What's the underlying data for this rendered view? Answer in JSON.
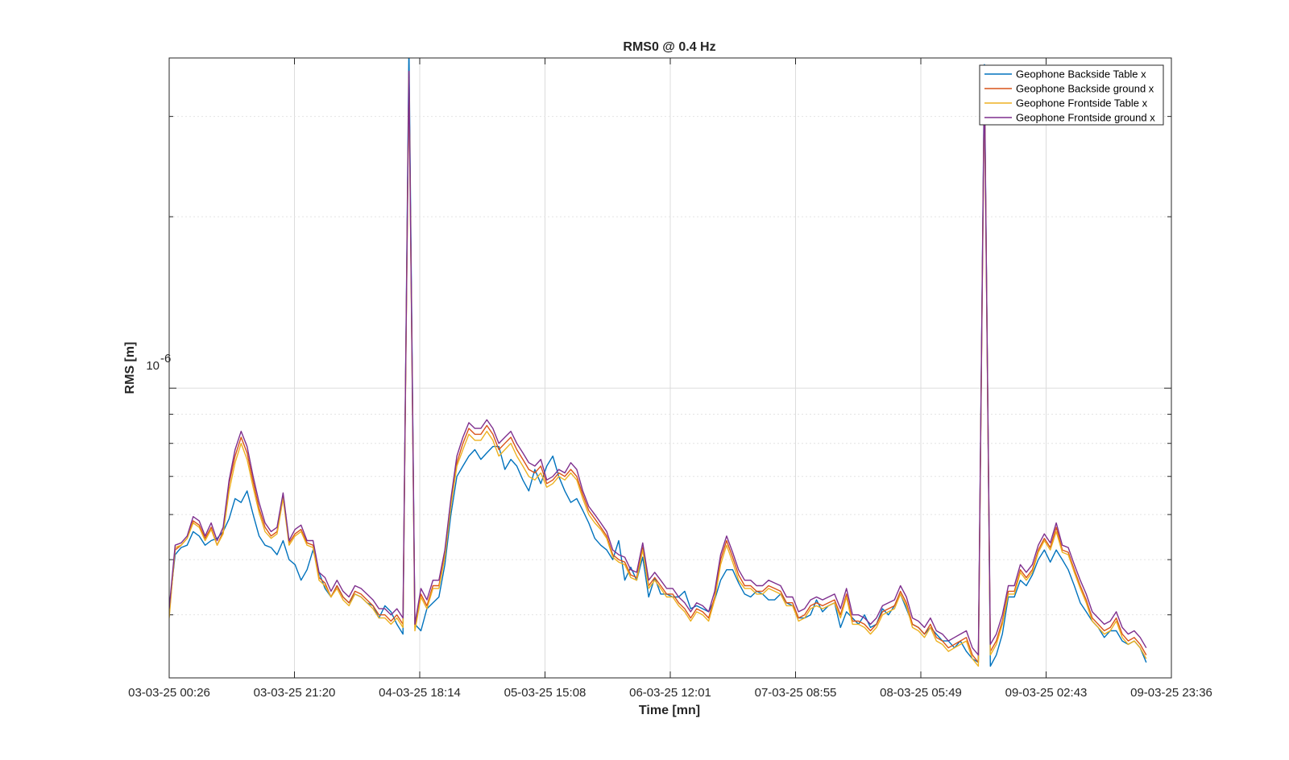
{
  "chart_data": {
    "type": "line",
    "title": "RMS0 @ 0.4 Hz",
    "xlabel": "Time [mn]",
    "ylabel": "RMS [m]",
    "y_scale": "log",
    "y_tick_label": {
      "base": "10",
      "exp": "-6"
    },
    "ylim": [
      3.1e-07,
      3.8e-06
    ],
    "x_ticks": [
      "03-03-25 00:26",
      "03-03-25 21:20",
      "04-03-25 18:14",
      "05-03-25 15:08",
      "06-03-25 12:01",
      "07-03-25 08:55",
      "08-03-25 05:49",
      "09-03-25 02:43",
      "09-03-25 23:36"
    ],
    "x_tick_hours": [
      0,
      20.9,
      41.8,
      62.7,
      83.6,
      104.5,
      125.4,
      146.3,
      167.2
    ],
    "xlim_hours": [
      0,
      167.2
    ],
    "grid": true,
    "legend_position": "top-right",
    "series": [
      {
        "name": "Geophone Backside Table x",
        "color": "#0072BD"
      },
      {
        "name": "Geophone Backside ground x",
        "color": "#D95319"
      },
      {
        "name": "Geophone Frontside Table x",
        "color": "#EDB120"
      },
      {
        "name": "Geophone Frontside ground x",
        "color": "#7E2F8E"
      }
    ],
    "x_hours": [
      0,
      1,
      2,
      3,
      4,
      5,
      6,
      7,
      8,
      9,
      10,
      11,
      12,
      13,
      14,
      15,
      16,
      17,
      18,
      19,
      20,
      21,
      22,
      23,
      24,
      25,
      26,
      27,
      28,
      29,
      30,
      31,
      32,
      33,
      34,
      35,
      36,
      37,
      38,
      39,
      40,
      41,
      42,
      43,
      44,
      45,
      46,
      47,
      48,
      49,
      50,
      51,
      52,
      53,
      54,
      55,
      56,
      57,
      58,
      59,
      60,
      61,
      62,
      63,
      64,
      65,
      66,
      67,
      68,
      69,
      70,
      71,
      72,
      73,
      74,
      75,
      76,
      77,
      78,
      79,
      80,
      81,
      82,
      83,
      84,
      85,
      86,
      87,
      88,
      89,
      90,
      91,
      92,
      93,
      94,
      95,
      96,
      97,
      98,
      99,
      100,
      101,
      102,
      103,
      104,
      105,
      106,
      107,
      108,
      109,
      110,
      111,
      112,
      113,
      114,
      115,
      116,
      117,
      118,
      119,
      120,
      121,
      122,
      123,
      124,
      125,
      126,
      127,
      128,
      129,
      130,
      131,
      132,
      133,
      134,
      135,
      136,
      137,
      138,
      139,
      140,
      141,
      142,
      143,
      144,
      145,
      146,
      147,
      148,
      149,
      150,
      151,
      152,
      153,
      154,
      155,
      156,
      157,
      158,
      159,
      160,
      161,
      162,
      163,
      164,
      165,
      166,
      167
    ],
    "values_frontside_ground_x": [
      4.1e-07,
      5.3e-07,
      5.35e-07,
      5.5e-07,
      5.95e-07,
      5.85e-07,
      5.5e-07,
      5.8e-07,
      5.4e-07,
      5.7e-07,
      6.9e-07,
      7.8e-07,
      8.4e-07,
      7.9e-07,
      7e-07,
      6.3e-07,
      5.8e-07,
      5.6e-07,
      5.7e-07,
      6.55e-07,
      5.4e-07,
      5.65e-07,
      5.75e-07,
      5.4e-07,
      5.4e-07,
      4.75e-07,
      4.65e-07,
      4.4e-07,
      4.6e-07,
      4.4e-07,
      4.3e-07,
      4.5e-07,
      4.45e-07,
      4.35e-07,
      4.25e-07,
      4.1e-07,
      4.1e-07,
      4e-07,
      4.1e-07,
      3.95e-07,
      3.6e-06,
      3.85e-07,
      4.45e-07,
      4.25e-07,
      4.6e-07,
      4.6e-07,
      5.2e-07,
      6.4e-07,
      7.6e-07,
      8.2e-07,
      8.7e-07,
      8.5e-07,
      8.5e-07,
      8.8e-07,
      8.5e-07,
      8e-07,
      8.2e-07,
      8.4e-07,
      8e-07,
      7.7e-07,
      7.4e-07,
      7.3e-07,
      7.5e-07,
      6.9e-07,
      7e-07,
      7.2e-07,
      7.1e-07,
      7.4e-07,
      7.2e-07,
      6.6e-07,
      6.2e-07,
      6e-07,
      5.8e-07,
      5.6e-07,
      5.2e-07,
      5.1e-07,
      5.05e-07,
      4.8e-07,
      4.75e-07,
      5.35e-07,
      4.6e-07,
      4.75e-07,
      4.6e-07,
      4.45e-07,
      4.45e-07,
      4.3e-07,
      4.2e-07,
      4.05e-07,
      4.2e-07,
      4.15e-07,
      4.05e-07,
      4.4e-07,
      5.1e-07,
      5.5e-07,
      5.15e-07,
      4.8e-07,
      4.6e-07,
      4.6e-07,
      4.5e-07,
      4.5e-07,
      4.6e-07,
      4.55e-07,
      4.5e-07,
      4.3e-07,
      4.3e-07,
      4.05e-07,
      4.1e-07,
      4.25e-07,
      4.3e-07,
      4.25e-07,
      4.3e-07,
      4.35e-07,
      4.1e-07,
      4.45e-07,
      4e-07,
      4e-07,
      3.95e-07,
      3.85e-07,
      3.95e-07,
      4.15e-07,
      4.2e-07,
      4.25e-07,
      4.5e-07,
      4.3e-07,
      3.95e-07,
      3.9e-07,
      3.8e-07,
      3.95e-07,
      3.75e-07,
      3.7e-07,
      3.6e-07,
      3.65e-07,
      3.7e-07,
      3.75e-07,
      3.5e-07,
      3.4e-07,
      3.5e-06,
      3.55e-07,
      3.7e-07,
      4e-07,
      4.5e-07,
      4.5e-07,
      4.9e-07,
      4.75e-07,
      4.9e-07,
      5.3e-07,
      5.55e-07,
      5.35e-07,
      5.8e-07,
      5.3e-07,
      5.25e-07,
      4.9e-07,
      4.6e-07,
      4.35e-07,
      4.05e-07,
      3.95e-07,
      3.85e-07,
      3.9e-07,
      4.05e-07,
      3.8e-07,
      3.7e-07,
      3.75e-07,
      3.65e-07,
      3.5e-07
    ],
    "values_backside_ground_x": [
      4e-07,
      5.2e-07,
      5.3e-07,
      5.45e-07,
      5.85e-07,
      5.75e-07,
      5.45e-07,
      5.7e-07,
      5.3e-07,
      5.6e-07,
      6.8e-07,
      7.6e-07,
      8.2e-07,
      7.7e-07,
      6.85e-07,
      6.15e-07,
      5.7e-07,
      5.5e-07,
      5.6e-07,
      6.5e-07,
      5.35e-07,
      5.55e-07,
      5.65e-07,
      5.35e-07,
      5.3e-07,
      4.65e-07,
      4.55e-07,
      4.3e-07,
      4.5e-07,
      4.3e-07,
      4.2e-07,
      4.4e-07,
      4.35e-07,
      4.25e-07,
      4.15e-07,
      4e-07,
      4e-07,
      3.9e-07,
      4e-07,
      3.85e-07,
      3.6e-06,
      3.8e-07,
      4.35e-07,
      4.15e-07,
      4.5e-07,
      4.5e-07,
      5.1e-07,
      6.3e-07,
      7.4e-07,
      8e-07,
      8.5e-07,
      8.3e-07,
      8.3e-07,
      8.6e-07,
      8.3e-07,
      7.8e-07,
      8e-07,
      8.2e-07,
      7.8e-07,
      7.5e-07,
      7.2e-07,
      7.1e-07,
      7.3e-07,
      6.8e-07,
      6.9e-07,
      7.1e-07,
      7e-07,
      7.2e-07,
      7e-07,
      6.5e-07,
      6.1e-07,
      5.9e-07,
      5.7e-07,
      5.5e-07,
      5.1e-07,
      5e-07,
      4.95e-07,
      4.7e-07,
      4.65e-07,
      5.25e-07,
      4.5e-07,
      4.65e-07,
      4.5e-07,
      4.35e-07,
      4.35e-07,
      4.2e-07,
      4.1e-07,
      3.95e-07,
      4.1e-07,
      4.05e-07,
      3.95e-07,
      4.3e-07,
      5e-07,
      5.4e-07,
      5.05e-07,
      4.7e-07,
      4.5e-07,
      4.5e-07,
      4.4e-07,
      4.4e-07,
      4.5e-07,
      4.45e-07,
      4.4e-07,
      4.2e-07,
      4.2e-07,
      3.95e-07,
      4e-07,
      4.15e-07,
      4.2e-07,
      4.15e-07,
      4.2e-07,
      4.25e-07,
      4e-07,
      4.35e-07,
      3.9e-07,
      3.9e-07,
      3.85e-07,
      3.75e-07,
      3.85e-07,
      4.05e-07,
      4.1e-07,
      4.15e-07,
      4.4e-07,
      4.2e-07,
      3.85e-07,
      3.8e-07,
      3.7e-07,
      3.85e-07,
      3.65e-07,
      3.6e-07,
      3.5e-07,
      3.55e-07,
      3.6e-07,
      3.65e-07,
      3.4e-07,
      3.3e-07,
      3.5e-06,
      3.45e-07,
      3.6e-07,
      3.9e-07,
      4.4e-07,
      4.4e-07,
      4.8e-07,
      4.65e-07,
      4.8e-07,
      5.2e-07,
      5.45e-07,
      5.25e-07,
      5.7e-07,
      5.2e-07,
      5.15e-07,
      4.8e-07,
      4.5e-07,
      4.25e-07,
      3.95e-07,
      3.85e-07,
      3.75e-07,
      3.8e-07,
      3.95e-07,
      3.7e-07,
      3.6e-07,
      3.65e-07,
      3.55e-07,
      3.4e-07
    ],
    "values_frontside_table_x": [
      3.95e-07,
      5.25e-07,
      5.3e-07,
      5.45e-07,
      5.8e-07,
      5.7e-07,
      5.4e-07,
      5.65e-07,
      5.3e-07,
      5.55e-07,
      6.6e-07,
      7.4e-07,
      8e-07,
      7.5e-07,
      6.7e-07,
      6.05e-07,
      5.6e-07,
      5.45e-07,
      5.55e-07,
      6.4e-07,
      5.3e-07,
      5.5e-07,
      5.6e-07,
      5.3e-07,
      5.25e-07,
      4.6e-07,
      4.5e-07,
      4.3e-07,
      4.45e-07,
      4.25e-07,
      4.15e-07,
      4.35e-07,
      4.3e-07,
      4.2e-07,
      4.1e-07,
      3.95e-07,
      3.95e-07,
      3.85e-07,
      3.95e-07,
      3.8e-07,
      3.5e-06,
      3.75e-07,
      4.3e-07,
      4.1e-07,
      4.45e-07,
      4.45e-07,
      5.05e-07,
      6.2e-07,
      7.3e-07,
      7.8e-07,
      8.3e-07,
      8.1e-07,
      8.1e-07,
      8.4e-07,
      8.1e-07,
      7.6e-07,
      7.8e-07,
      8e-07,
      7.6e-07,
      7.3e-07,
      7e-07,
      6.9e-07,
      7.1e-07,
      6.7e-07,
      6.8e-07,
      7e-07,
      6.9e-07,
      7.1e-07,
      6.9e-07,
      6.4e-07,
      6e-07,
      5.8e-07,
      5.65e-07,
      5.45e-07,
      5.05e-07,
      4.95e-07,
      4.9e-07,
      4.65e-07,
      4.6e-07,
      5.2e-07,
      4.45e-07,
      4.6e-07,
      4.45e-07,
      4.3e-07,
      4.3e-07,
      4.15e-07,
      4.05e-07,
      3.9e-07,
      4.05e-07,
      4e-07,
      3.9e-07,
      4.25e-07,
      4.9e-07,
      5.3e-07,
      4.95e-07,
      4.6e-07,
      4.45e-07,
      4.45e-07,
      4.35e-07,
      4.35e-07,
      4.45e-07,
      4.4e-07,
      4.35e-07,
      4.15e-07,
      4.15e-07,
      3.9e-07,
      3.95e-07,
      4.1e-07,
      4.15e-07,
      4.1e-07,
      4.15e-07,
      4.2e-07,
      3.95e-07,
      4.3e-07,
      3.85e-07,
      3.85e-07,
      3.8e-07,
      3.7e-07,
      3.8e-07,
      4e-07,
      4.05e-07,
      4.1e-07,
      4.35e-07,
      4.15e-07,
      3.8e-07,
      3.75e-07,
      3.65e-07,
      3.8e-07,
      3.6e-07,
      3.55e-07,
      3.45e-07,
      3.5e-07,
      3.55e-07,
      3.6e-07,
      3.35e-07,
      3.25e-07,
      3.4e-06,
      3.4e-07,
      3.55e-07,
      3.85e-07,
      4.35e-07,
      4.35e-07,
      4.75e-07,
      4.6e-07,
      4.75e-07,
      5.15e-07,
      5.4e-07,
      5.2e-07,
      5.6e-07,
      5.15e-07,
      5.1e-07,
      4.75e-07,
      4.45e-07,
      4.2e-07,
      3.9e-07,
      3.8e-07,
      3.7e-07,
      3.75e-07,
      3.9e-07,
      3.65e-07,
      3.55e-07,
      3.6e-07,
      3.5e-07,
      3.35e-07
    ],
    "values_backside_table_x": [
      4.1e-07,
      5.1e-07,
      5.25e-07,
      5.3e-07,
      5.6e-07,
      5.5e-07,
      5.3e-07,
      5.4e-07,
      5.45e-07,
      5.6e-07,
      5.9e-07,
      6.4e-07,
      6.3e-07,
      6.6e-07,
      6e-07,
      5.5e-07,
      5.3e-07,
      5.25e-07,
      5.1e-07,
      5.4e-07,
      5e-07,
      4.9e-07,
      4.6e-07,
      4.8e-07,
      5.2e-07,
      4.75e-07,
      4.45e-07,
      4.3e-07,
      4.5e-07,
      4.3e-07,
      4.2e-07,
      4.35e-07,
      4.3e-07,
      4.2e-07,
      4.15e-07,
      3.95e-07,
      4.15e-07,
      4.05e-07,
      3.85e-07,
      3.7e-07,
      4e-06,
      3.85e-07,
      3.75e-07,
      4.1e-07,
      4.2e-07,
      4.3e-07,
      4.9e-07,
      6e-07,
      7e-07,
      7.3e-07,
      7.6e-07,
      7.8e-07,
      7.5e-07,
      7.7e-07,
      7.9e-07,
      7.9e-07,
      7.2e-07,
      7.5e-07,
      7.3e-07,
      6.9e-07,
      6.6e-07,
      7.2e-07,
      6.8e-07,
      7.3e-07,
      7.6e-07,
      7e-07,
      6.6e-07,
      6.3e-07,
      6.4e-07,
      6.1e-07,
      5.8e-07,
      5.45e-07,
      5.3e-07,
      5.2e-07,
      5e-07,
      5.4e-07,
      4.6e-07,
      4.85e-07,
      4.6e-07,
      5.05e-07,
      4.3e-07,
      4.65e-07,
      4.35e-07,
      4.35e-07,
      4.3e-07,
      4.3e-07,
      4.4e-07,
      4.1e-07,
      4.15e-07,
      4.1e-07,
      4.05e-07,
      4.25e-07,
      4.6e-07,
      4.8e-07,
      4.8e-07,
      4.55e-07,
      4.35e-07,
      4.3e-07,
      4.4e-07,
      4.35e-07,
      4.25e-07,
      4.25e-07,
      4.35e-07,
      4.2e-07,
      4.15e-07,
      3.95e-07,
      3.95e-07,
      4e-07,
      4.25e-07,
      4.05e-07,
      4.15e-07,
      4.2e-07,
      3.8e-07,
      4.05e-07,
      3.95e-07,
      3.85e-07,
      4e-07,
      3.8e-07,
      3.85e-07,
      4.1e-07,
      4e-07,
      4.15e-07,
      4.35e-07,
      4.1e-07,
      3.85e-07,
      3.8e-07,
      3.7e-07,
      3.8e-07,
      3.7e-07,
      3.6e-07,
      3.6e-07,
      3.5e-07,
      3.6e-07,
      3.45e-07,
      3.35e-07,
      3.3e-07,
      3.7e-06,
      3.25e-07,
      3.4e-07,
      3.7e-07,
      4.3e-07,
      4.3e-07,
      4.6e-07,
      4.5e-07,
      4.7e-07,
      5e-07,
      5.2e-07,
      4.95e-07,
      5.2e-07,
      5e-07,
      4.8e-07,
      4.5e-07,
      4.2e-07,
      4.05e-07,
      3.9e-07,
      3.8e-07,
      3.65e-07,
      3.75e-07,
      3.75e-07,
      3.6e-07,
      3.55e-07,
      3.6e-07,
      3.5e-07,
      3.3e-07
    ]
  }
}
